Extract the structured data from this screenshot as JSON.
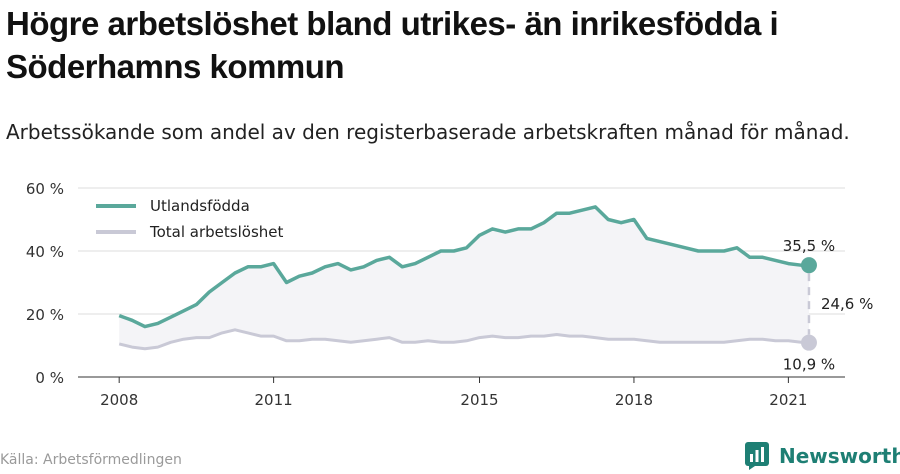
{
  "title": "Högre arbetslöshet bland utrikes- än inrikesfödda i Söderhamns kommun",
  "subtitle": "Arbetssökande som andel av den registerbaserade arbetskraften månad för månad.",
  "source": "Källa: Arbetsförmedlingen",
  "brand": {
    "name": "Newsworthy",
    "icon": "newsworthy-logo-icon"
  },
  "colors": {
    "foreign": "#5aa89b",
    "total": "#c9c9d6",
    "fill": "#f4f4f7",
    "grid": "#dddddd",
    "brand": "#1e7f74"
  },
  "annotations": {
    "foreign_end": "35,5 %",
    "total_end": "10,9 %",
    "gap": "24,6 %"
  },
  "chart_data": {
    "type": "line",
    "x_start": "2008-01",
    "x_ticks": [
      {
        "value": 2008.0,
        "label": "2008"
      },
      {
        "value": 2011.0,
        "label": "2011"
      },
      {
        "value": 2015.0,
        "label": "2015"
      },
      {
        "value": 2018.0,
        "label": "2018"
      },
      {
        "value": 2021.0,
        "label": "2021"
      }
    ],
    "y_ticks": [
      {
        "value": 0,
        "label": "0 %"
      },
      {
        "value": 20,
        "label": "20 %"
      },
      {
        "value": 40,
        "label": "40 %"
      },
      {
        "value": 60,
        "label": "60 %"
      }
    ],
    "ylim": [
      0,
      60
    ],
    "xlim": [
      2007.2,
      2022.1
    ],
    "grid": true,
    "legend": "top-left",
    "series": [
      {
        "name": "Utlandsfödda",
        "color": "#5aa89b",
        "points": [
          [
            2008.0,
            19.5
          ],
          [
            2008.25,
            18
          ],
          [
            2008.5,
            16
          ],
          [
            2008.75,
            17
          ],
          [
            2009.0,
            19
          ],
          [
            2009.25,
            21
          ],
          [
            2009.5,
            23
          ],
          [
            2009.75,
            27
          ],
          [
            2010.0,
            30
          ],
          [
            2010.25,
            33
          ],
          [
            2010.5,
            35
          ],
          [
            2010.75,
            35
          ],
          [
            2011.0,
            36
          ],
          [
            2011.25,
            30
          ],
          [
            2011.5,
            32
          ],
          [
            2011.75,
            33
          ],
          [
            2012.0,
            35
          ],
          [
            2012.25,
            36
          ],
          [
            2012.5,
            34
          ],
          [
            2012.75,
            35
          ],
          [
            2013.0,
            37
          ],
          [
            2013.25,
            38
          ],
          [
            2013.5,
            35
          ],
          [
            2013.75,
            36
          ],
          [
            2014.0,
            38
          ],
          [
            2014.25,
            40
          ],
          [
            2014.5,
            40
          ],
          [
            2014.75,
            41
          ],
          [
            2015.0,
            45
          ],
          [
            2015.25,
            47
          ],
          [
            2015.5,
            46
          ],
          [
            2015.75,
            47
          ],
          [
            2016.0,
            47
          ],
          [
            2016.25,
            49
          ],
          [
            2016.5,
            52
          ],
          [
            2016.75,
            52
          ],
          [
            2017.0,
            53
          ],
          [
            2017.25,
            54
          ],
          [
            2017.5,
            50
          ],
          [
            2017.75,
            49
          ],
          [
            2018.0,
            50
          ],
          [
            2018.25,
            44
          ],
          [
            2018.5,
            43
          ],
          [
            2018.75,
            42
          ],
          [
            2019.0,
            41
          ],
          [
            2019.25,
            40
          ],
          [
            2019.5,
            40
          ],
          [
            2019.75,
            40
          ],
          [
            2020.0,
            41
          ],
          [
            2020.25,
            38
          ],
          [
            2020.5,
            38
          ],
          [
            2020.75,
            37
          ],
          [
            2021.0,
            36
          ],
          [
            2021.25,
            35.5
          ],
          [
            2021.4,
            35.5
          ]
        ]
      },
      {
        "name": "Total arbetslöshet",
        "color": "#c9c9d6",
        "points": [
          [
            2008.0,
            10.5
          ],
          [
            2008.25,
            9.5
          ],
          [
            2008.5,
            9
          ],
          [
            2008.75,
            9.5
          ],
          [
            2009.0,
            11
          ],
          [
            2009.25,
            12
          ],
          [
            2009.5,
            12.5
          ],
          [
            2009.75,
            12.5
          ],
          [
            2010.0,
            14
          ],
          [
            2010.25,
            15
          ],
          [
            2010.5,
            14
          ],
          [
            2010.75,
            13
          ],
          [
            2011.0,
            13
          ],
          [
            2011.25,
            11.5
          ],
          [
            2011.5,
            11.5
          ],
          [
            2011.75,
            12
          ],
          [
            2012.0,
            12
          ],
          [
            2012.25,
            11.5
          ],
          [
            2012.5,
            11
          ],
          [
            2012.75,
            11.5
          ],
          [
            2013.0,
            12
          ],
          [
            2013.25,
            12.5
          ],
          [
            2013.5,
            11
          ],
          [
            2013.75,
            11
          ],
          [
            2014.0,
            11.5
          ],
          [
            2014.25,
            11
          ],
          [
            2014.5,
            11
          ],
          [
            2014.75,
            11.5
          ],
          [
            2015.0,
            12.5
          ],
          [
            2015.25,
            13
          ],
          [
            2015.5,
            12.5
          ],
          [
            2015.75,
            12.5
          ],
          [
            2016.0,
            13
          ],
          [
            2016.25,
            13
          ],
          [
            2016.5,
            13.5
          ],
          [
            2016.75,
            13
          ],
          [
            2017.0,
            13
          ],
          [
            2017.25,
            12.5
          ],
          [
            2017.5,
            12
          ],
          [
            2017.75,
            12
          ],
          [
            2018.0,
            12
          ],
          [
            2018.25,
            11.5
          ],
          [
            2018.5,
            11
          ],
          [
            2018.75,
            11
          ],
          [
            2019.0,
            11
          ],
          [
            2019.25,
            11
          ],
          [
            2019.5,
            11
          ],
          [
            2019.75,
            11
          ],
          [
            2020.0,
            11.5
          ],
          [
            2020.25,
            12
          ],
          [
            2020.5,
            12
          ],
          [
            2020.75,
            11.5
          ],
          [
            2021.0,
            11.5
          ],
          [
            2021.25,
            11
          ],
          [
            2021.4,
            10.9
          ]
        ]
      }
    ]
  }
}
